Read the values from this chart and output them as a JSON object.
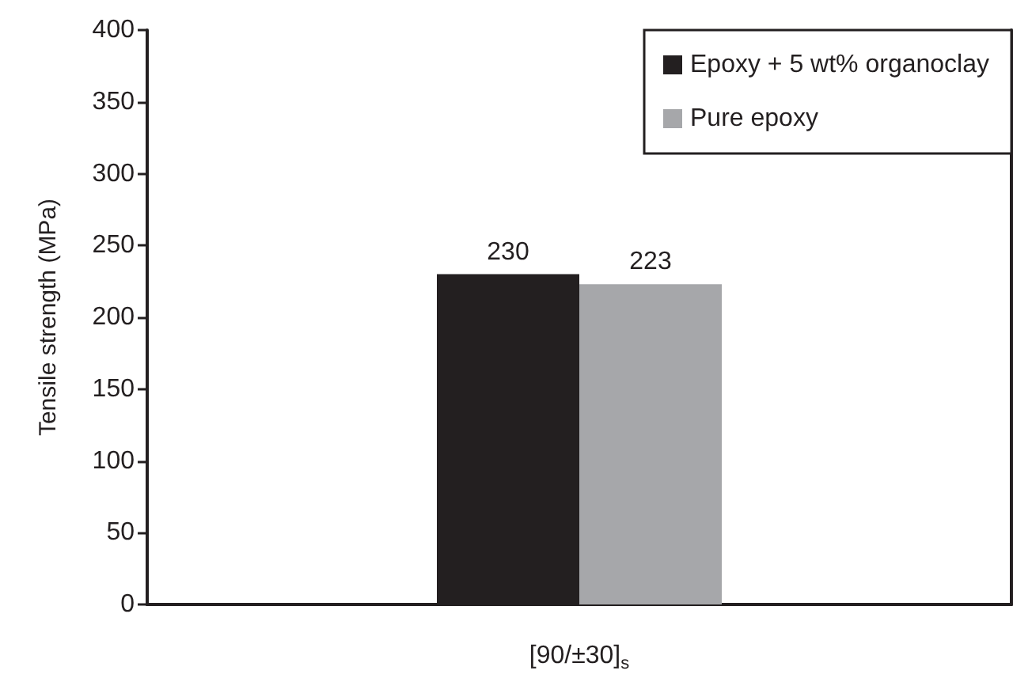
{
  "chart_data": {
    "type": "bar",
    "ylabel": "Tensile strength (MPa)",
    "categories": [
      "[90/±30]$_{s}$"
    ],
    "series": [
      {
        "name": "Epoxy + 5 wt% organoclay",
        "color": "#231f20",
        "values": [
          230
        ]
      },
      {
        "name": "Pure epoxy",
        "color": "#a6a7aa",
        "values": [
          223
        ]
      }
    ],
    "ylim": [
      0,
      400
    ],
    "yticks": [
      0,
      50,
      100,
      150,
      200,
      250,
      300,
      350,
      400
    ],
    "grid": false,
    "legend": "top right",
    "data_labels": true
  }
}
